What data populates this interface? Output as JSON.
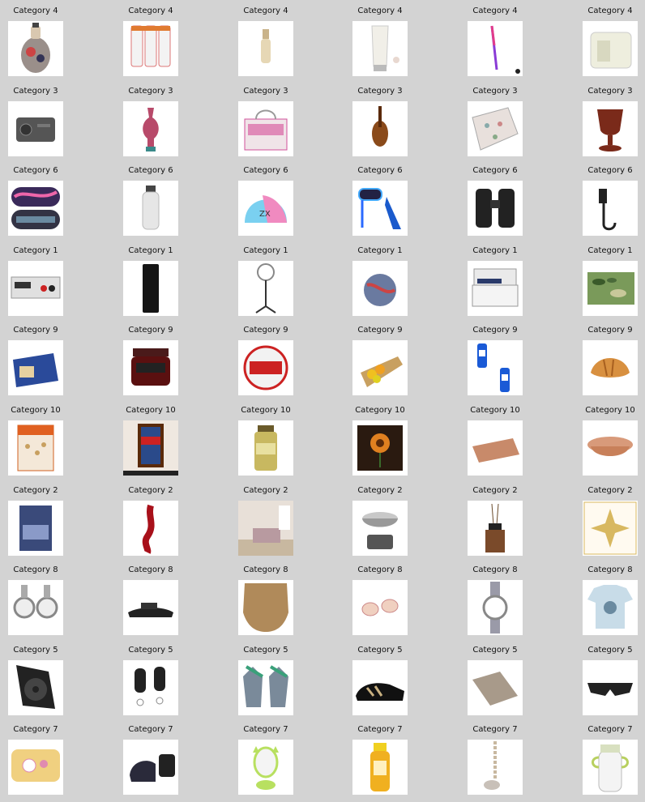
{
  "rows": [
    {
      "label": "Category 4",
      "items": [
        {
          "icon": "tattoo-vase-icon"
        },
        {
          "icon": "ointment-tubes-icon"
        },
        {
          "icon": "perfume-bottle-icon"
        },
        {
          "icon": "cream-tube-icon"
        },
        {
          "icon": "eyeliner-pencil-icon"
        },
        {
          "icon": "cream-jar-icon"
        }
      ]
    },
    {
      "label": "Category 3",
      "items": [
        {
          "icon": "laser-projector-icon"
        },
        {
          "icon": "vase-icon"
        },
        {
          "icon": "tote-bag-icon"
        },
        {
          "icon": "violin-icon"
        },
        {
          "icon": "fabric-swatch-icon"
        },
        {
          "icon": "goblet-icon"
        }
      ]
    },
    {
      "label": "Category 6",
      "items": [
        {
          "icon": "sleep-mask-icon"
        },
        {
          "icon": "water-bottle-icon"
        },
        {
          "icon": "swim-cap-icon"
        },
        {
          "icon": "snorkel-set-icon"
        },
        {
          "icon": "binoculars-icon"
        },
        {
          "icon": "bike-hook-icon"
        }
      ]
    },
    {
      "label": "Category 1",
      "items": [
        {
          "icon": "power-supply-icon"
        },
        {
          "icon": "external-drive-icon"
        },
        {
          "icon": "ring-light-icon"
        },
        {
          "icon": "globe-ornament-icon"
        },
        {
          "icon": "printer-icon"
        },
        {
          "icon": "camo-fabric-icon"
        }
      ]
    },
    {
      "label": "Category 9",
      "items": [
        {
          "icon": "food-box-icon"
        },
        {
          "icon": "jam-jar-icon"
        },
        {
          "icon": "tin-can-icon"
        },
        {
          "icon": "flower-bouquet-icon"
        },
        {
          "icon": "drink-cans-icon"
        },
        {
          "icon": "croissant-icon"
        }
      ]
    },
    {
      "label": "Category 10",
      "items": [
        {
          "icon": "seeds-bag-icon"
        },
        {
          "icon": "stained-glass-door-icon"
        },
        {
          "icon": "spice-jar-icon"
        },
        {
          "icon": "flower-painting-icon"
        },
        {
          "icon": "copper-tray-icon"
        },
        {
          "icon": "copper-bowl-icon"
        }
      ]
    },
    {
      "label": "Category 2",
      "items": [
        {
          "icon": "bedding-pack-icon"
        },
        {
          "icon": "red-garland-icon"
        },
        {
          "icon": "bedroom-photo-icon"
        },
        {
          "icon": "kitchen-scale-icon"
        },
        {
          "icon": "reed-diffuser-icon"
        },
        {
          "icon": "ceiling-medallion-icon"
        }
      ]
    },
    {
      "label": "Category 8",
      "items": [
        {
          "icon": "pair-watches-icon"
        },
        {
          "icon": "sandal-icon"
        },
        {
          "icon": "shapewear-icon"
        },
        {
          "icon": "cufflinks-icon"
        },
        {
          "icon": "wristwatch-icon"
        },
        {
          "icon": "kids-tshirt-icon"
        }
      ]
    },
    {
      "label": "Category 5",
      "items": [
        {
          "icon": "radiator-fan-icon"
        },
        {
          "icon": "car-remote-icon"
        },
        {
          "icon": "work-gloves-icon"
        },
        {
          "icon": "sneaker-icon"
        },
        {
          "icon": "metal-bracket-icon"
        },
        {
          "icon": "safety-glasses-icon"
        }
      ]
    },
    {
      "label": "Category 7",
      "items": [
        {
          "icon": "kids-pillow-icon"
        },
        {
          "icon": "baby-car-seat-icon"
        },
        {
          "icon": "baby-rattle-icon"
        },
        {
          "icon": "baby-powder-icon"
        },
        {
          "icon": "pacifier-clip-icon"
        },
        {
          "icon": "baby-bottle-icon"
        }
      ]
    }
  ]
}
